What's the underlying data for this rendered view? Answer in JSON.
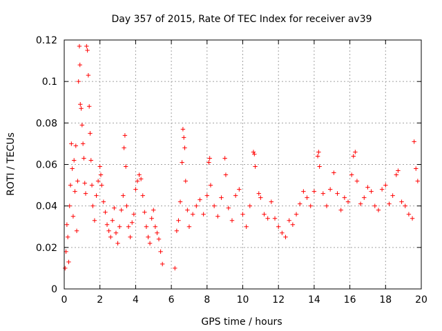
{
  "chart_data": {
    "type": "scatter",
    "title": "Day 357 of 2015, Rate Of TEC Index for receiver av39",
    "xlabel": "GPS time / hours",
    "ylabel": "ROTI / TECUs",
    "xlim": [
      0,
      20
    ],
    "ylim": [
      0,
      0.12
    ],
    "x_ticks": [
      0,
      2,
      4,
      6,
      8,
      10,
      12,
      14,
      16,
      18,
      20
    ],
    "x_tick_labels": [
      "0",
      "2",
      "4",
      "6",
      "8",
      "10",
      "12",
      "14",
      "16",
      "18",
      "20"
    ],
    "y_ticks": [
      0,
      0.02,
      0.04,
      0.06,
      0.08,
      0.1,
      0.12
    ],
    "y_tick_labels": [
      "0",
      "0.02",
      "0.04",
      "0.06",
      "0.08",
      "0.1",
      "0.12"
    ],
    "grid": true,
    "marker": "+",
    "marker_color": "#ff0000",
    "series": [
      {
        "name": "ROTI",
        "points": [
          [
            0.05,
            0.01
          ],
          [
            0.1,
            0.018
          ],
          [
            0.15,
            0.031
          ],
          [
            0.2,
            0.025
          ],
          [
            0.25,
            0.013
          ],
          [
            0.3,
            0.04
          ],
          [
            0.35,
            0.05
          ],
          [
            0.4,
            0.07
          ],
          [
            0.45,
            0.058
          ],
          [
            0.5,
            0.035
          ],
          [
            0.55,
            0.062
          ],
          [
            0.6,
            0.047
          ],
          [
            0.65,
            0.069
          ],
          [
            0.7,
            0.028
          ],
          [
            0.75,
            0.052
          ],
          [
            0.8,
            0.1
          ],
          [
            0.85,
            0.117
          ],
          [
            0.88,
            0.108
          ],
          [
            0.9,
            0.089
          ],
          [
            0.95,
            0.087
          ],
          [
            1.0,
            0.079
          ],
          [
            1.05,
            0.07
          ],
          [
            1.1,
            0.063
          ],
          [
            1.15,
            0.051
          ],
          [
            1.2,
            0.046
          ],
          [
            1.25,
            0.117
          ],
          [
            1.3,
            0.115
          ],
          [
            1.35,
            0.103
          ],
          [
            1.4,
            0.088
          ],
          [
            1.45,
            0.075
          ],
          [
            1.5,
            0.062
          ],
          [
            1.55,
            0.05
          ],
          [
            1.6,
            0.04
          ],
          [
            1.7,
            0.033
          ],
          [
            1.8,
            0.045
          ],
          [
            1.9,
            0.052
          ],
          [
            2.0,
            0.059
          ],
          [
            2.05,
            0.055
          ],
          [
            2.1,
            0.05
          ],
          [
            2.2,
            0.042
          ],
          [
            2.3,
            0.037
          ],
          [
            2.4,
            0.031
          ],
          [
            2.5,
            0.028
          ],
          [
            2.6,
            0.025
          ],
          [
            2.7,
            0.033
          ],
          [
            2.8,
            0.039
          ],
          [
            2.9,
            0.027
          ],
          [
            3.0,
            0.022
          ],
          [
            3.1,
            0.03
          ],
          [
            3.2,
            0.038
          ],
          [
            3.3,
            0.045
          ],
          [
            3.35,
            0.068
          ],
          [
            3.4,
            0.074
          ],
          [
            3.45,
            0.059
          ],
          [
            3.5,
            0.04
          ],
          [
            3.6,
            0.03
          ],
          [
            3.7,
            0.025
          ],
          [
            3.8,
            0.032
          ],
          [
            3.9,
            0.036
          ],
          [
            4.0,
            0.048
          ],
          [
            4.1,
            0.052
          ],
          [
            4.2,
            0.055
          ],
          [
            4.3,
            0.053
          ],
          [
            4.4,
            0.045
          ],
          [
            4.5,
            0.037
          ],
          [
            4.6,
            0.03
          ],
          [
            4.7,
            0.025
          ],
          [
            4.8,
            0.022
          ],
          [
            4.9,
            0.034
          ],
          [
            5.0,
            0.038
          ],
          [
            5.1,
            0.03
          ],
          [
            5.2,
            0.027
          ],
          [
            5.3,
            0.024
          ],
          [
            5.4,
            0.018
          ],
          [
            5.5,
            0.012
          ],
          [
            6.2,
            0.01
          ],
          [
            6.3,
            0.028
          ],
          [
            6.4,
            0.033
          ],
          [
            6.5,
            0.042
          ],
          [
            6.6,
            0.061
          ],
          [
            6.65,
            0.077
          ],
          [
            6.7,
            0.073
          ],
          [
            6.75,
            0.068
          ],
          [
            6.8,
            0.052
          ],
          [
            6.9,
            0.038
          ],
          [
            7.0,
            0.03
          ],
          [
            7.2,
            0.036
          ],
          [
            7.4,
            0.04
          ],
          [
            7.6,
            0.043
          ],
          [
            7.8,
            0.036
          ],
          [
            8.0,
            0.045
          ],
          [
            8.1,
            0.061
          ],
          [
            8.15,
            0.063
          ],
          [
            8.2,
            0.05
          ],
          [
            8.4,
            0.04
          ],
          [
            8.6,
            0.035
          ],
          [
            8.8,
            0.044
          ],
          [
            9.0,
            0.063
          ],
          [
            9.05,
            0.055
          ],
          [
            9.2,
            0.039
          ],
          [
            9.4,
            0.033
          ],
          [
            9.6,
            0.045
          ],
          [
            9.8,
            0.048
          ],
          [
            10.0,
            0.036
          ],
          [
            10.2,
            0.03
          ],
          [
            10.4,
            0.04
          ],
          [
            10.6,
            0.066
          ],
          [
            10.65,
            0.065
          ],
          [
            10.7,
            0.059
          ],
          [
            10.9,
            0.046
          ],
          [
            11.0,
            0.044
          ],
          [
            11.2,
            0.036
          ],
          [
            11.4,
            0.034
          ],
          [
            11.6,
            0.042
          ],
          [
            11.8,
            0.034
          ],
          [
            12.0,
            0.03
          ],
          [
            12.2,
            0.027
          ],
          [
            12.4,
            0.025
          ],
          [
            12.6,
            0.033
          ],
          [
            12.8,
            0.031
          ],
          [
            13.0,
            0.036
          ],
          [
            13.2,
            0.041
          ],
          [
            13.4,
            0.047
          ],
          [
            13.6,
            0.044
          ],
          [
            13.8,
            0.04
          ],
          [
            14.0,
            0.047
          ],
          [
            14.2,
            0.064
          ],
          [
            14.25,
            0.066
          ],
          [
            14.3,
            0.059
          ],
          [
            14.5,
            0.046
          ],
          [
            14.7,
            0.04
          ],
          [
            14.9,
            0.048
          ],
          [
            15.1,
            0.056
          ],
          [
            15.3,
            0.046
          ],
          [
            15.5,
            0.038
          ],
          [
            15.7,
            0.044
          ],
          [
            15.9,
            0.042
          ],
          [
            16.1,
            0.055
          ],
          [
            16.2,
            0.064
          ],
          [
            16.3,
            0.066
          ],
          [
            16.4,
            0.052
          ],
          [
            16.6,
            0.041
          ],
          [
            16.8,
            0.044
          ],
          [
            17.0,
            0.049
          ],
          [
            17.2,
            0.047
          ],
          [
            17.4,
            0.04
          ],
          [
            17.6,
            0.038
          ],
          [
            17.8,
            0.048
          ],
          [
            18.0,
            0.05
          ],
          [
            18.2,
            0.041
          ],
          [
            18.4,
            0.045
          ],
          [
            18.6,
            0.055
          ],
          [
            18.7,
            0.057
          ],
          [
            18.9,
            0.042
          ],
          [
            19.1,
            0.04
          ],
          [
            19.3,
            0.036
          ],
          [
            19.5,
            0.034
          ],
          [
            19.6,
            0.071
          ],
          [
            19.7,
            0.058
          ],
          [
            19.8,
            0.052
          ]
        ]
      }
    ]
  }
}
